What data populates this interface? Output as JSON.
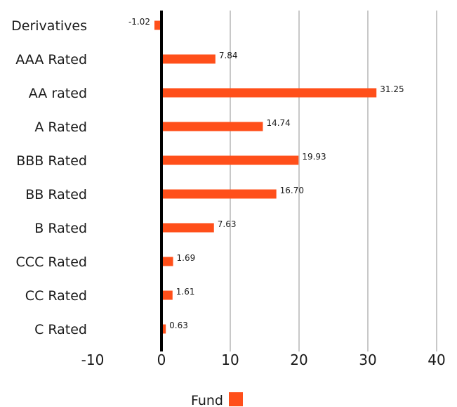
{
  "chart_data": {
    "type": "bar",
    "orientation": "horizontal",
    "categories": [
      "Derivatives",
      "AAA Rated",
      "AA rated",
      "A Rated",
      "BBB Rated",
      "BB Rated",
      "B Rated",
      "CCC Rated",
      "CC Rated",
      "C Rated"
    ],
    "series": [
      {
        "name": "Fund",
        "color": "#ff4f1a",
        "values": [
          -1.02,
          7.84,
          31.25,
          14.74,
          19.93,
          16.7,
          7.63,
          1.69,
          1.61,
          0.63
        ],
        "value_labels": [
          "-1.02",
          "7.84",
          "31.25",
          "14.74",
          "19.93",
          "16.70",
          "7.63",
          "1.69",
          "1.61",
          "0.63"
        ]
      }
    ],
    "xlim": [
      -10,
      40
    ],
    "xticks": [
      -10,
      0,
      10,
      20,
      30,
      40
    ],
    "xtick_labels": [
      "-10",
      "0",
      "10",
      "20",
      "30",
      "40"
    ],
    "grid": "vertical",
    "legend": "bottom",
    "colors": {
      "bar": "#ff4f1a",
      "grid": "#c8c8c8",
      "zero_line": "#000000",
      "text": "#1a1a1a"
    }
  }
}
